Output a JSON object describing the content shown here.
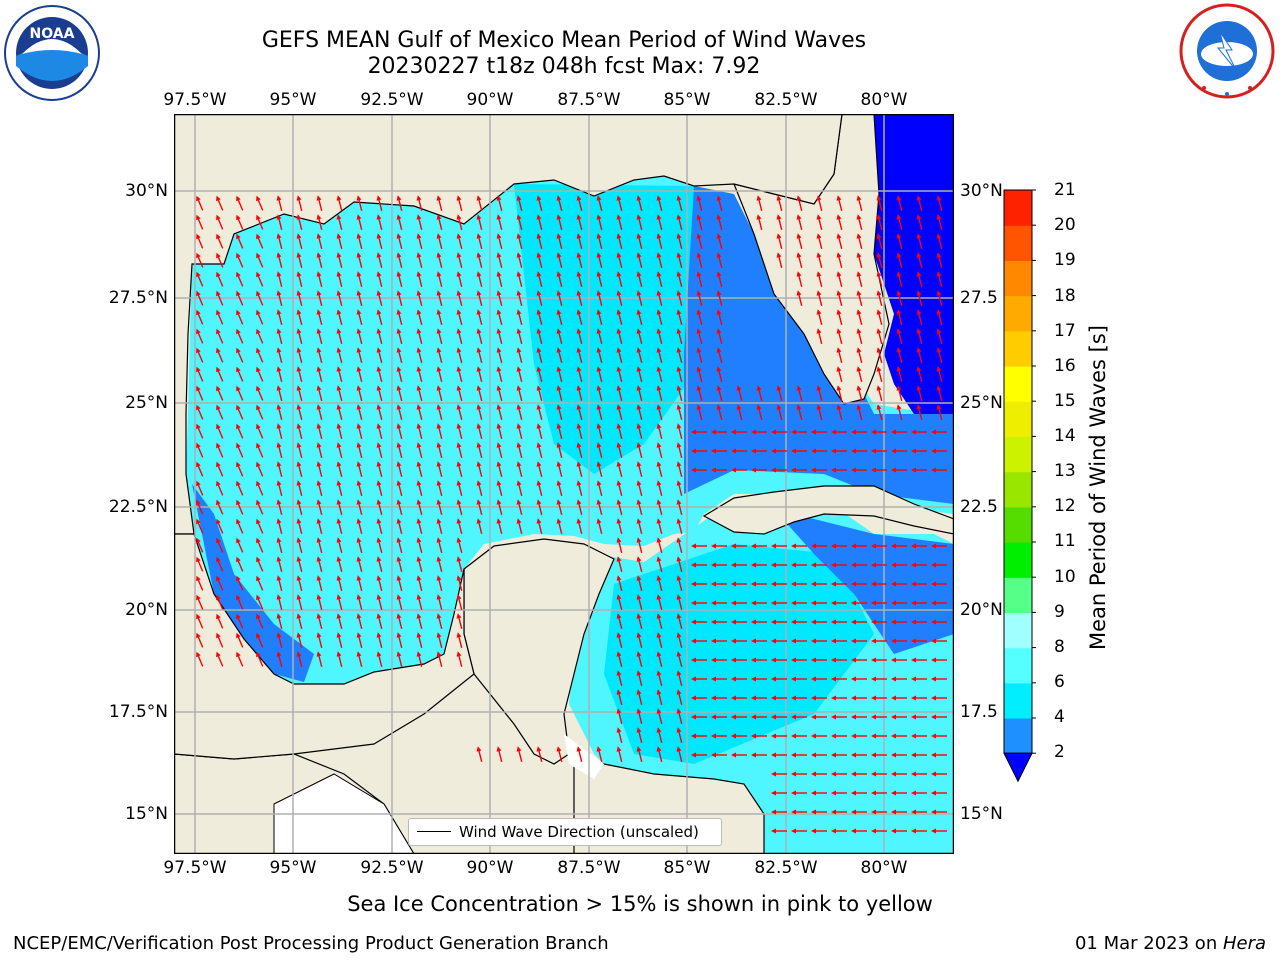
{
  "title": {
    "line1": "GEFS MEAN Gulf of Mexico Mean Period of Wind Waves",
    "line2": "20230227 t18z 048h fcst   Max: 7.92"
  },
  "logos": {
    "left": "NOAA",
    "right": "NATIONAL WEATHER SERVICE"
  },
  "map": {
    "lon_labels": [
      "97.5°W",
      "95°W",
      "92.5°W",
      "90°W",
      "87.5°W",
      "85°W",
      "82.5°W",
      "80°W"
    ],
    "lat_labels_left": [
      "30°N",
      "27.5°N",
      "25°N",
      "22.5°N",
      "20°N",
      "17.5°N",
      "15°N"
    ],
    "lat_labels_right": [
      "30°N",
      "27.5",
      "25°N",
      "22.5",
      "20°N",
      "17.5",
      "15°N"
    ],
    "legend_label": "Wind Wave Direction (unscaled)",
    "colors": {
      "land": "#efecdc",
      "ocean_lt4": "#00e8ff",
      "ocean_lt6": "#4ff5ff",
      "ocean_2": "#1f7fff",
      "ocean_low": "#0000ff",
      "arrow": "#ff0000",
      "grid": "#b0b0b0"
    }
  },
  "colorbar": {
    "title": "Mean Period of Wind Waves [s]",
    "levels": [
      "2",
      "4",
      "6",
      "8",
      "9",
      "10",
      "11",
      "12",
      "13",
      "14",
      "15",
      "16",
      "17",
      "18",
      "19",
      "20",
      "21"
    ],
    "colors": [
      "#0000ff",
      "#1e90ff",
      "#00eeff",
      "#55ffff",
      "#a0ffff",
      "#55ff88",
      "#00ee00",
      "#55dd00",
      "#99e600",
      "#ccf200",
      "#eeee00",
      "#ffff00",
      "#ffcc00",
      "#ffaa00",
      "#ff8800",
      "#ff5500",
      "#ff2200",
      "#ff0000"
    ]
  },
  "footer": {
    "caption": "Sea Ice Concentration > 15% is shown in pink to yellow",
    "left": "NCEP/EMC/Verification Post Processing Product Generation Branch",
    "right_date": "01 Mar 2023 on ",
    "right_host": "Hera"
  }
}
